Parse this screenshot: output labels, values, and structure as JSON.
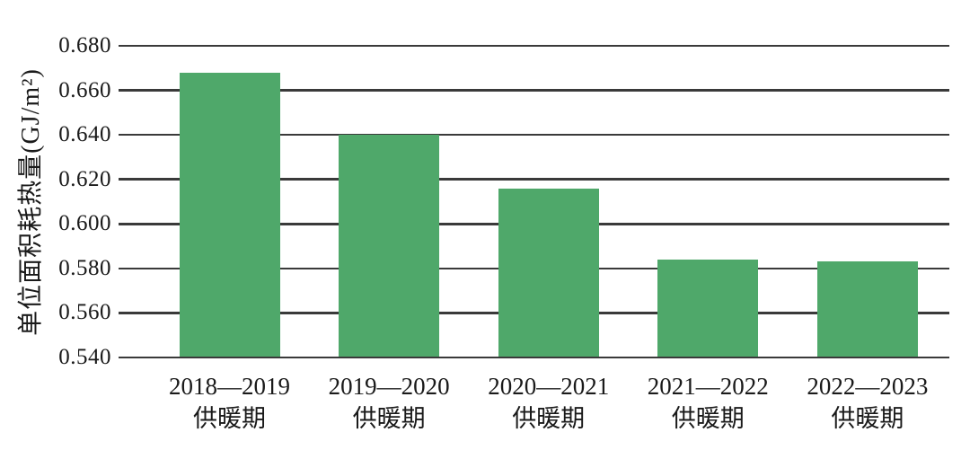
{
  "chart_data": {
    "type": "bar",
    "title": "",
    "xlabel": "",
    "ylabel": "单位面积耗热量(GJ/m²)",
    "categories": [
      "2018—2019",
      "2019—2020",
      "2020—2021",
      "2021—2022",
      "2022—2023"
    ],
    "category_sublabel": "供暖期",
    "values": [
      0.668,
      0.64,
      0.616,
      0.584,
      0.583
    ],
    "ylim": [
      0.54,
      0.68
    ],
    "ytick_step": 0.02,
    "ytick_labels": [
      "0.540",
      "0.560",
      "0.580",
      "0.600",
      "0.620",
      "0.640",
      "0.660",
      "0.680"
    ],
    "grid": true,
    "legend": "none",
    "bar_color": "#4FA86A",
    "gridline_color": "#3A3A3A",
    "text_color": "#1a1a1a",
    "background_color": "#ffffff"
  }
}
